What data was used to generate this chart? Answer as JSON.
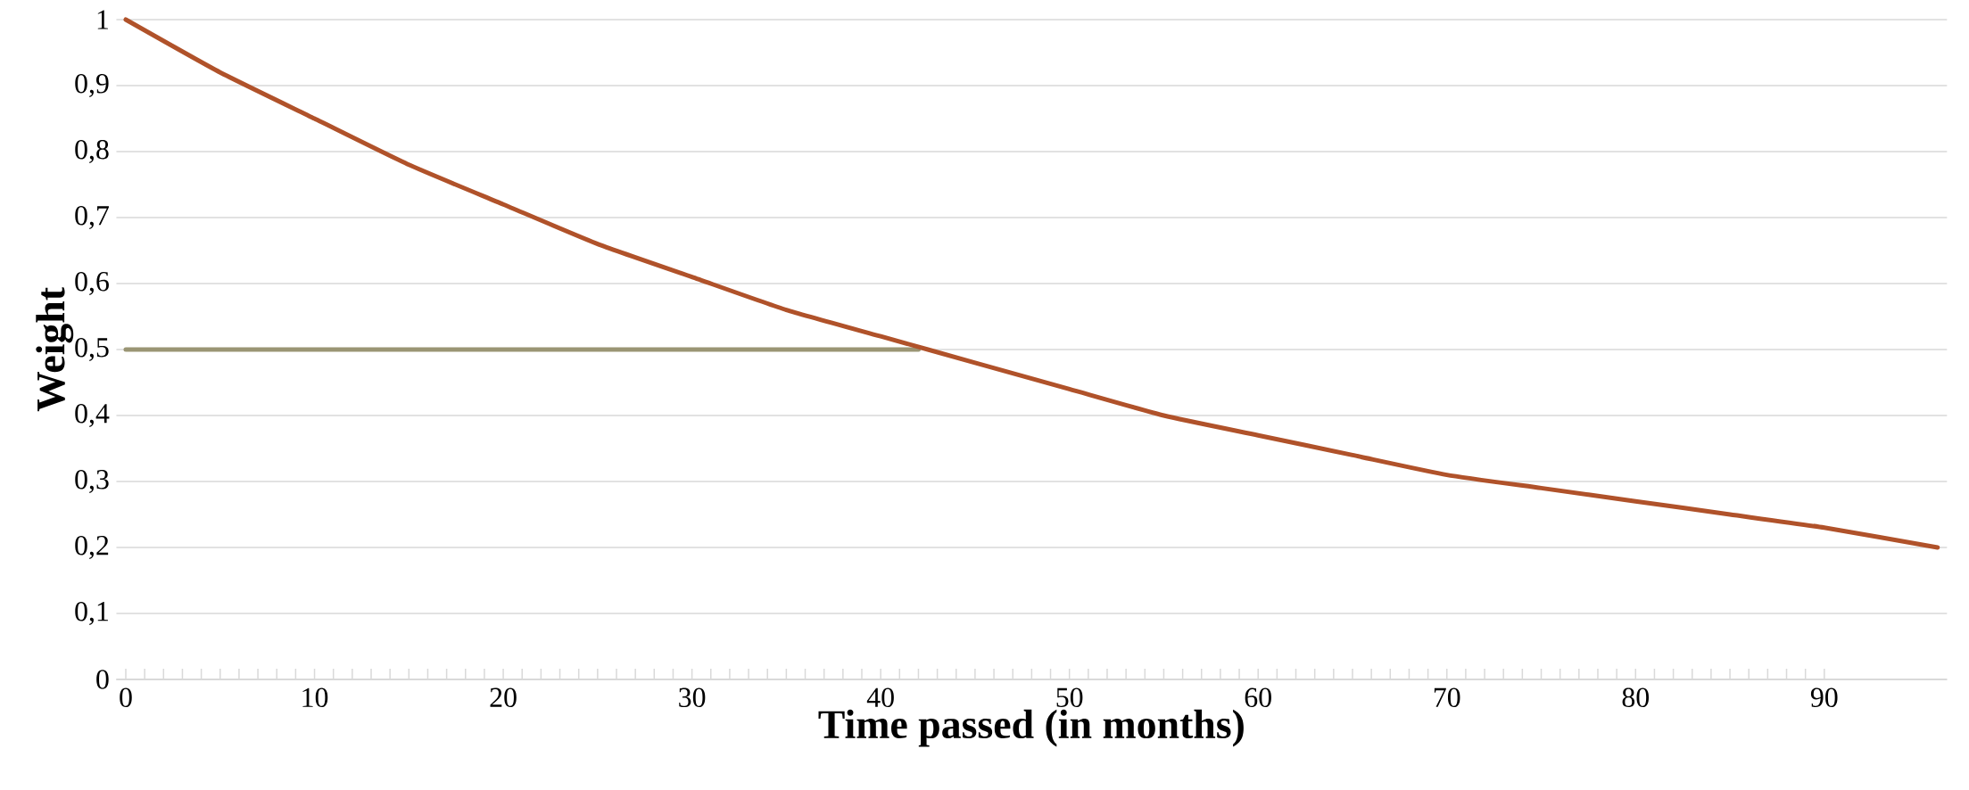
{
  "chart_data": {
    "type": "line",
    "xlabel": "Time passed (in months)",
    "ylabel": "Weight",
    "xlim": [
      -0.5,
      96.5
    ],
    "xticks": [
      0,
      10,
      20,
      30,
      40,
      50,
      60,
      70,
      80,
      90
    ],
    "ylim": [
      0,
      1
    ],
    "yticks": [
      {
        "value": 0,
        "label": "0"
      },
      {
        "value": 0.1,
        "label": "0,1"
      },
      {
        "value": 0.2,
        "label": "0,2"
      },
      {
        "value": 0.3,
        "label": "0,3"
      },
      {
        "value": 0.4,
        "label": "0,4"
      },
      {
        "value": 0.5,
        "label": "0,5"
      },
      {
        "value": 0.6,
        "label": "0,6"
      },
      {
        "value": 0.7,
        "label": "0,7"
      },
      {
        "value": 0.8,
        "label": "0,8"
      },
      {
        "value": 0.9,
        "label": "0,9"
      },
      {
        "value": 1,
        "label": "1"
      }
    ],
    "grid": "y",
    "marker": "none",
    "series": [
      {
        "color": "#b0522a",
        "x": [
          0,
          5,
          10,
          15,
          20,
          25,
          30,
          35,
          40,
          45,
          50,
          55,
          60,
          65,
          70,
          75,
          80,
          85,
          90,
          96
        ],
        "values": [
          1,
          0.92,
          0.85,
          0.78,
          0.72,
          0.66,
          0.61,
          0.56,
          0.52,
          0.48,
          0.44,
          0.4,
          0.37,
          0.34,
          0.31,
          0.29,
          0.27,
          0.25,
          0.23,
          0.2
        ]
      },
      {
        "color": "#9a9574",
        "x": [
          0,
          42
        ],
        "values": [
          0.5,
          0.5
        ]
      }
    ]
  }
}
